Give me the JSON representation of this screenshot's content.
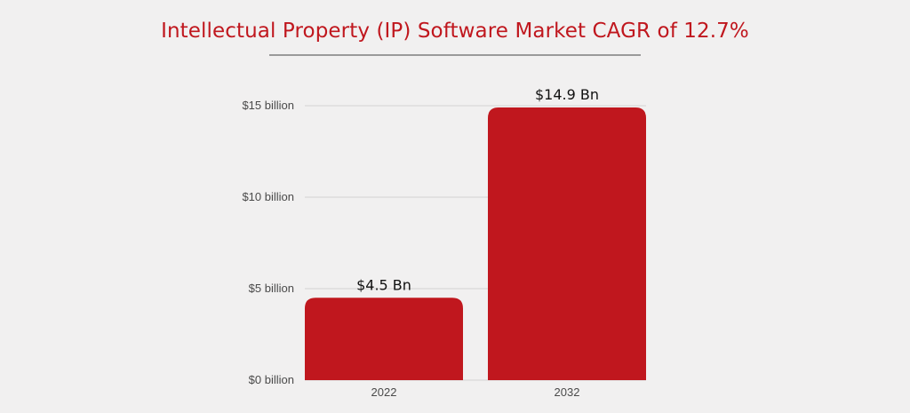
{
  "chart_data": {
    "type": "bar",
    "title": "Intellectual Property (IP) Software Market CAGR of 12.7%",
    "categories": [
      "2022",
      "2032"
    ],
    "values": [
      4.5,
      14.9
    ],
    "data_labels": [
      "$4.5 Bn",
      "$14.9 Bn"
    ],
    "yticks": [
      0,
      5,
      10,
      15
    ],
    "ytick_labels": [
      "$0 billion",
      "$5 billion",
      "$10 billion",
      "$15 billion"
    ],
    "ylim": [
      0,
      15
    ],
    "xlabel": "",
    "ylabel": "",
    "grid": true,
    "bar_color": "#c0171e"
  }
}
